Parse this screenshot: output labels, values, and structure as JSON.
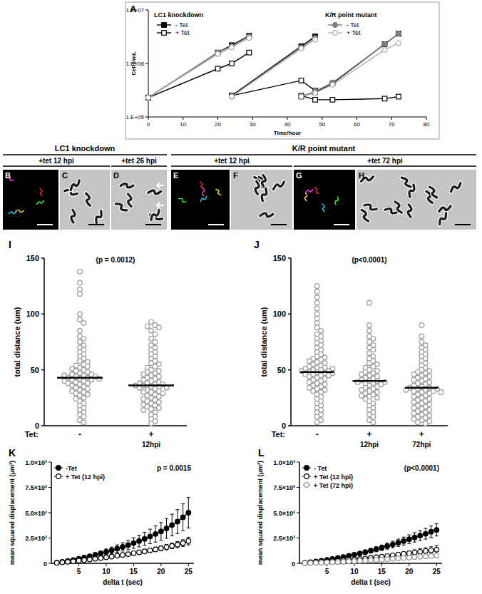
{
  "chart_data": [
    {
      "type": "line",
      "title": "A",
      "xlabel": "Time/hour",
      "ylabel": "Cells/mL",
      "log": "y",
      "legend": "top",
      "x": [
        0,
        20,
        24,
        29,
        29,
        24,
        44,
        48,
        48,
        44,
        48,
        53,
        68,
        72
      ],
      "series": [
        {
          "name": "- Tet",
          "group": "LC1 knockdown",
          "color": "#000000",
          "marker": "square",
          "values": [
            230000,
            1600000,
            2200000,
            3300000,
            null,
            250000,
            2100000,
            3200000,
            null,
            240000,
            290000,
            420000,
            2300000,
            3600000
          ]
        },
        {
          "name": "+ Tet",
          "group": "LC1 knockdown",
          "color": "#000000",
          "marker": "open-square",
          "values": [
            230000,
            800000,
            1000000,
            1600000,
            null,
            250000,
            480000,
            310000,
            null,
            250000,
            210000,
            210000,
            220000,
            240000
          ]
        },
        {
          "name": "- Tet",
          "group": "K/R point mutant",
          "color": "#808080",
          "marker": "circle",
          "values": [
            230000,
            1600000,
            2100000,
            3200000,
            null,
            240000,
            2000000,
            3000000,
            null,
            240000,
            300000,
            440000,
            2300000,
            3600000
          ]
        },
        {
          "name": "+ Tet",
          "group": "K/R point mutant",
          "color": "#b0b0b0",
          "marker": "open-circle",
          "values": [
            230000,
            1500000,
            2000000,
            3000000,
            null,
            240000,
            1900000,
            2800000,
            null,
            240000,
            280000,
            400000,
            1800000,
            2400000
          ]
        }
      ],
      "xlim": [
        0,
        80
      ],
      "xticks": [
        0,
        10,
        20,
        30,
        40,
        50,
        60,
        70,
        80
      ],
      "ylim": [
        100000,
        10000000
      ],
      "yticks": [
        {
          "value": 100000,
          "label": "1.E+05"
        },
        {
          "value": 1000000,
          "label": "1.E+06"
        },
        {
          "value": 10000000,
          "label": "1.E+07"
        }
      ]
    },
    {
      "type": "dot_plot",
      "title": "I",
      "annotations": [
        "(p = 0.0012)"
      ],
      "xlabel": "Tet:",
      "ylabel": "total distance (um)",
      "color": "#999999",
      "marker": "open-circle",
      "categories": [
        "-",
        "+"
      ],
      "category_sublabels": [
        null,
        "12hpi"
      ],
      "values": [
        [
          138,
          128,
          122,
          118,
          100,
          95,
          92,
          85,
          80,
          78,
          75,
          72,
          70,
          68,
          66,
          64,
          62,
          60,
          58,
          57,
          55,
          54,
          53,
          52,
          51,
          50,
          49,
          48,
          47,
          46,
          46,
          45,
          45,
          44,
          44,
          43,
          43,
          42,
          42,
          41,
          41,
          40,
          40,
          39,
          38,
          38,
          37,
          36,
          35,
          34,
          33,
          32,
          31,
          30,
          29,
          28,
          27,
          25,
          24,
          22,
          20,
          18,
          16,
          14,
          12,
          10,
          8,
          5,
          3
        ],
        [
          93,
          90,
          89,
          88,
          85,
          82,
          78,
          75,
          72,
          70,
          68,
          66,
          64,
          62,
          60,
          58,
          56,
          55,
          53,
          52,
          50,
          49,
          48,
          47,
          46,
          45,
          44,
          43,
          42,
          41,
          40,
          39,
          38,
          38,
          37,
          37,
          36,
          36,
          35,
          35,
          34,
          34,
          33,
          32,
          31,
          30,
          30,
          29,
          28,
          27,
          26,
          25,
          24,
          23,
          22,
          21,
          20,
          19,
          18,
          17,
          16,
          15,
          14,
          12,
          10,
          8,
          6,
          4,
          2
        ]
      ],
      "means": [
        43,
        36
      ],
      "ylim": [
        0,
        150
      ],
      "yticks": [
        0,
        50,
        100,
        150
      ]
    },
    {
      "type": "dot_plot",
      "title": "J",
      "annotations": [
        "(p<0.0001)"
      ],
      "xlabel": "Tet:",
      "ylabel": "total distance (um)",
      "color": "#999999",
      "marker": "open-circle",
      "categories": [
        "-",
        "+",
        "+"
      ],
      "category_sublabels": [
        null,
        "12hpi",
        "72hpi"
      ],
      "values": [
        [
          125,
          120,
          115,
          110,
          105,
          100,
          96,
          92,
          88,
          85,
          82,
          80,
          78,
          76,
          74,
          72,
          70,
          68,
          66,
          64,
          62,
          61,
          60,
          59,
          58,
          57,
          56,
          55,
          54,
          53,
          52,
          52,
          51,
          51,
          50,
          50,
          49,
          49,
          48,
          48,
          47,
          47,
          46,
          46,
          45,
          45,
          44,
          43,
          42,
          41,
          40,
          39,
          38,
          37,
          36,
          35,
          34,
          33,
          32,
          31,
          30,
          28,
          26,
          24,
          22,
          20,
          18,
          16,
          14,
          12,
          10,
          8,
          5,
          3
        ],
        [
          110,
          90,
          85,
          80,
          78,
          75,
          72,
          70,
          68,
          65,
          62,
          60,
          58,
          56,
          55,
          53,
          52,
          50,
          49,
          48,
          47,
          46,
          45,
          44,
          43,
          42,
          41,
          40,
          40,
          39,
          39,
          38,
          38,
          37,
          36,
          35,
          34,
          33,
          32,
          31,
          30,
          29,
          28,
          27,
          26,
          25,
          24,
          22,
          20,
          18,
          16,
          14,
          12,
          10,
          8,
          5,
          3
        ],
        [
          90,
          80,
          75,
          72,
          70,
          68,
          66,
          64,
          62,
          60,
          58,
          56,
          54,
          52,
          50,
          49,
          48,
          47,
          46,
          45,
          44,
          43,
          42,
          41,
          40,
          39,
          38,
          37,
          36,
          35,
          34,
          34,
          33,
          33,
          32,
          32,
          31,
          31,
          30,
          30,
          29,
          28,
          27,
          26,
          25,
          24,
          23,
          22,
          21,
          20,
          19,
          18,
          17,
          16,
          15,
          14,
          13,
          12,
          11,
          10,
          9,
          8,
          7,
          6,
          5,
          4,
          3,
          2
        ]
      ],
      "means": [
        48,
        40,
        34
      ],
      "ylim": [
        0,
        150
      ],
      "yticks": [
        0,
        50,
        100,
        150
      ]
    },
    {
      "type": "line",
      "title": "K",
      "annotations": [
        "p = 0.0015"
      ],
      "xlabel": "delta t (sec)",
      "ylabel": "mean squared displacement (μm²)",
      "legend": "top-left",
      "x": [
        1,
        2,
        3,
        4,
        5,
        6,
        7,
        8,
        9,
        10,
        11,
        12,
        13,
        14,
        15,
        16,
        17,
        18,
        19,
        20,
        21,
        22,
        23,
        24,
        25
      ],
      "series": [
        {
          "name": "-Tet",
          "color": "#000000",
          "marker": "circle",
          "values": [
            8,
            15,
            24,
            33,
            45,
            57,
            70,
            84,
            98,
            113,
            128,
            145,
            162,
            180,
            200,
            220,
            242,
            265,
            290,
            315,
            345,
            378,
            412,
            455,
            500
          ],
          "errors": [
            3,
            5,
            7,
            9,
            12,
            15,
            18,
            21,
            25,
            29,
            33,
            37,
            41,
            46,
            52,
            58,
            65,
            72,
            80,
            88,
            97,
            107,
            118,
            132,
            150
          ]
        },
        {
          "name": "+ Tet (12 hpi)",
          "color": "#000000",
          "marker": "open-circle",
          "values": [
            5,
            10,
            15,
            20,
            26,
            32,
            38,
            45,
            52,
            59,
            67,
            75,
            83,
            91,
            100,
            109,
            118,
            128,
            138,
            149,
            160,
            172,
            185,
            200,
            220
          ],
          "errors": [
            2,
            3,
            4,
            5,
            6,
            7,
            8,
            9,
            10,
            11,
            12,
            13,
            14,
            15,
            16,
            18,
            19,
            20,
            22,
            24,
            26,
            28,
            30,
            33,
            38
          ]
        }
      ],
      "xlim": [
        0,
        26
      ],
      "xticks": [
        5,
        10,
        15,
        20,
        25
      ],
      "ylim": [
        0,
        1000
      ],
      "yticks": [
        0,
        {
          "value": 250,
          "label": "2.5×10²"
        },
        {
          "value": 500,
          "label": "5.0×10²"
        },
        {
          "value": 750,
          "label": "7.5×10²"
        },
        {
          "value": 1000,
          "label": "1.0×10³"
        }
      ]
    },
    {
      "type": "line",
      "title": "L",
      "annotations": [
        "(p<0.0001)"
      ],
      "xlabel": "delta t (sec)",
      "ylabel": "mean squared displacement (μm²)",
      "legend": "top-left",
      "x": [
        1,
        2,
        3,
        4,
        5,
        6,
        7,
        8,
        9,
        10,
        11,
        12,
        13,
        14,
        15,
        16,
        17,
        18,
        19,
        20,
        21,
        22,
        23,
        24,
        25
      ],
      "series": [
        {
          "name": "- Tet",
          "color": "#000000",
          "marker": "circle",
          "values": [
            6,
            12,
            19,
            26,
            34,
            43,
            53,
            63,
            74,
            86,
            98,
            111,
            125,
            139,
            154,
            170,
            186,
            203,
            220,
            238,
            256,
            274,
            292,
            312,
            330
          ],
          "errors": [
            2,
            3,
            4,
            5,
            6,
            8,
            9,
            11,
            13,
            15,
            17,
            19,
            21,
            24,
            27,
            30,
            33,
            36,
            39,
            43,
            46,
            50,
            53,
            57,
            60
          ]
        },
        {
          "name": "+ Tet (12 hpi)",
          "color": "#000000",
          "marker": "open-circle",
          "values": [
            3,
            6,
            9,
            12,
            16,
            20,
            24,
            28,
            33,
            38,
            43,
            48,
            54,
            60,
            66,
            72,
            79,
            86,
            93,
            100,
            107,
            114,
            121,
            128,
            135
          ],
          "errors": [
            1,
            2,
            2,
            3,
            4,
            5,
            5,
            6,
            7,
            8,
            9,
            10,
            12,
            13,
            14,
            16,
            18,
            20,
            22,
            24,
            27,
            30,
            33,
            36,
            40
          ]
        },
        {
          "name": "+ Tet (72 hpi)",
          "color": "#999999",
          "marker": "open-circle",
          "values": [
            2,
            3,
            5,
            7,
            9,
            11,
            13,
            16,
            19,
            22,
            25,
            28,
            31,
            34,
            37,
            41,
            45,
            49,
            53,
            57,
            61,
            65,
            69,
            73,
            77
          ],
          "errors": [
            1,
            1,
            1,
            2,
            2,
            2,
            3,
            3,
            4,
            4,
            5,
            5,
            6,
            7,
            7,
            8,
            9,
            10,
            11,
            12,
            13,
            14,
            16,
            18,
            20
          ]
        }
      ],
      "xlim": [
        0,
        26
      ],
      "xticks": [
        5,
        10,
        15,
        20,
        25
      ],
      "ylim": [
        0,
        1000
      ],
      "yticks": [
        0,
        {
          "value": 250,
          "label": "2.5×10²"
        },
        {
          "value": 500,
          "label": "5.0×10²"
        },
        {
          "value": 750,
          "label": "7.5×10²"
        },
        {
          "value": 1000,
          "label": "1.0×10³"
        }
      ]
    }
  ],
  "micrographs": {
    "groups": [
      {
        "label": "LC1 knockdown",
        "conditions": [
          {
            "label": "+tet 12 hpi",
            "panels": [
              {
                "letter": "B",
                "kind": "fluorescence"
              },
              {
                "letter": "C",
                "kind": "brightfield"
              }
            ]
          },
          {
            "label": "+tet 26 hpi",
            "panels": [
              {
                "letter": "D",
                "kind": "brightfield",
                "arrows": 2
              }
            ]
          }
        ]
      },
      {
        "label": "K/R point mutant",
        "conditions": [
          {
            "label": "+tet 12 hpi",
            "panels": [
              {
                "letter": "E",
                "kind": "fluorescence"
              },
              {
                "letter": "F",
                "kind": "brightfield"
              }
            ]
          },
          {
            "label": "+tet 72 hpi",
            "panels": [
              {
                "letter": "G",
                "kind": "fluorescence"
              },
              {
                "letter": "H",
                "kind": "brightfield"
              }
            ]
          }
        ]
      }
    ]
  }
}
